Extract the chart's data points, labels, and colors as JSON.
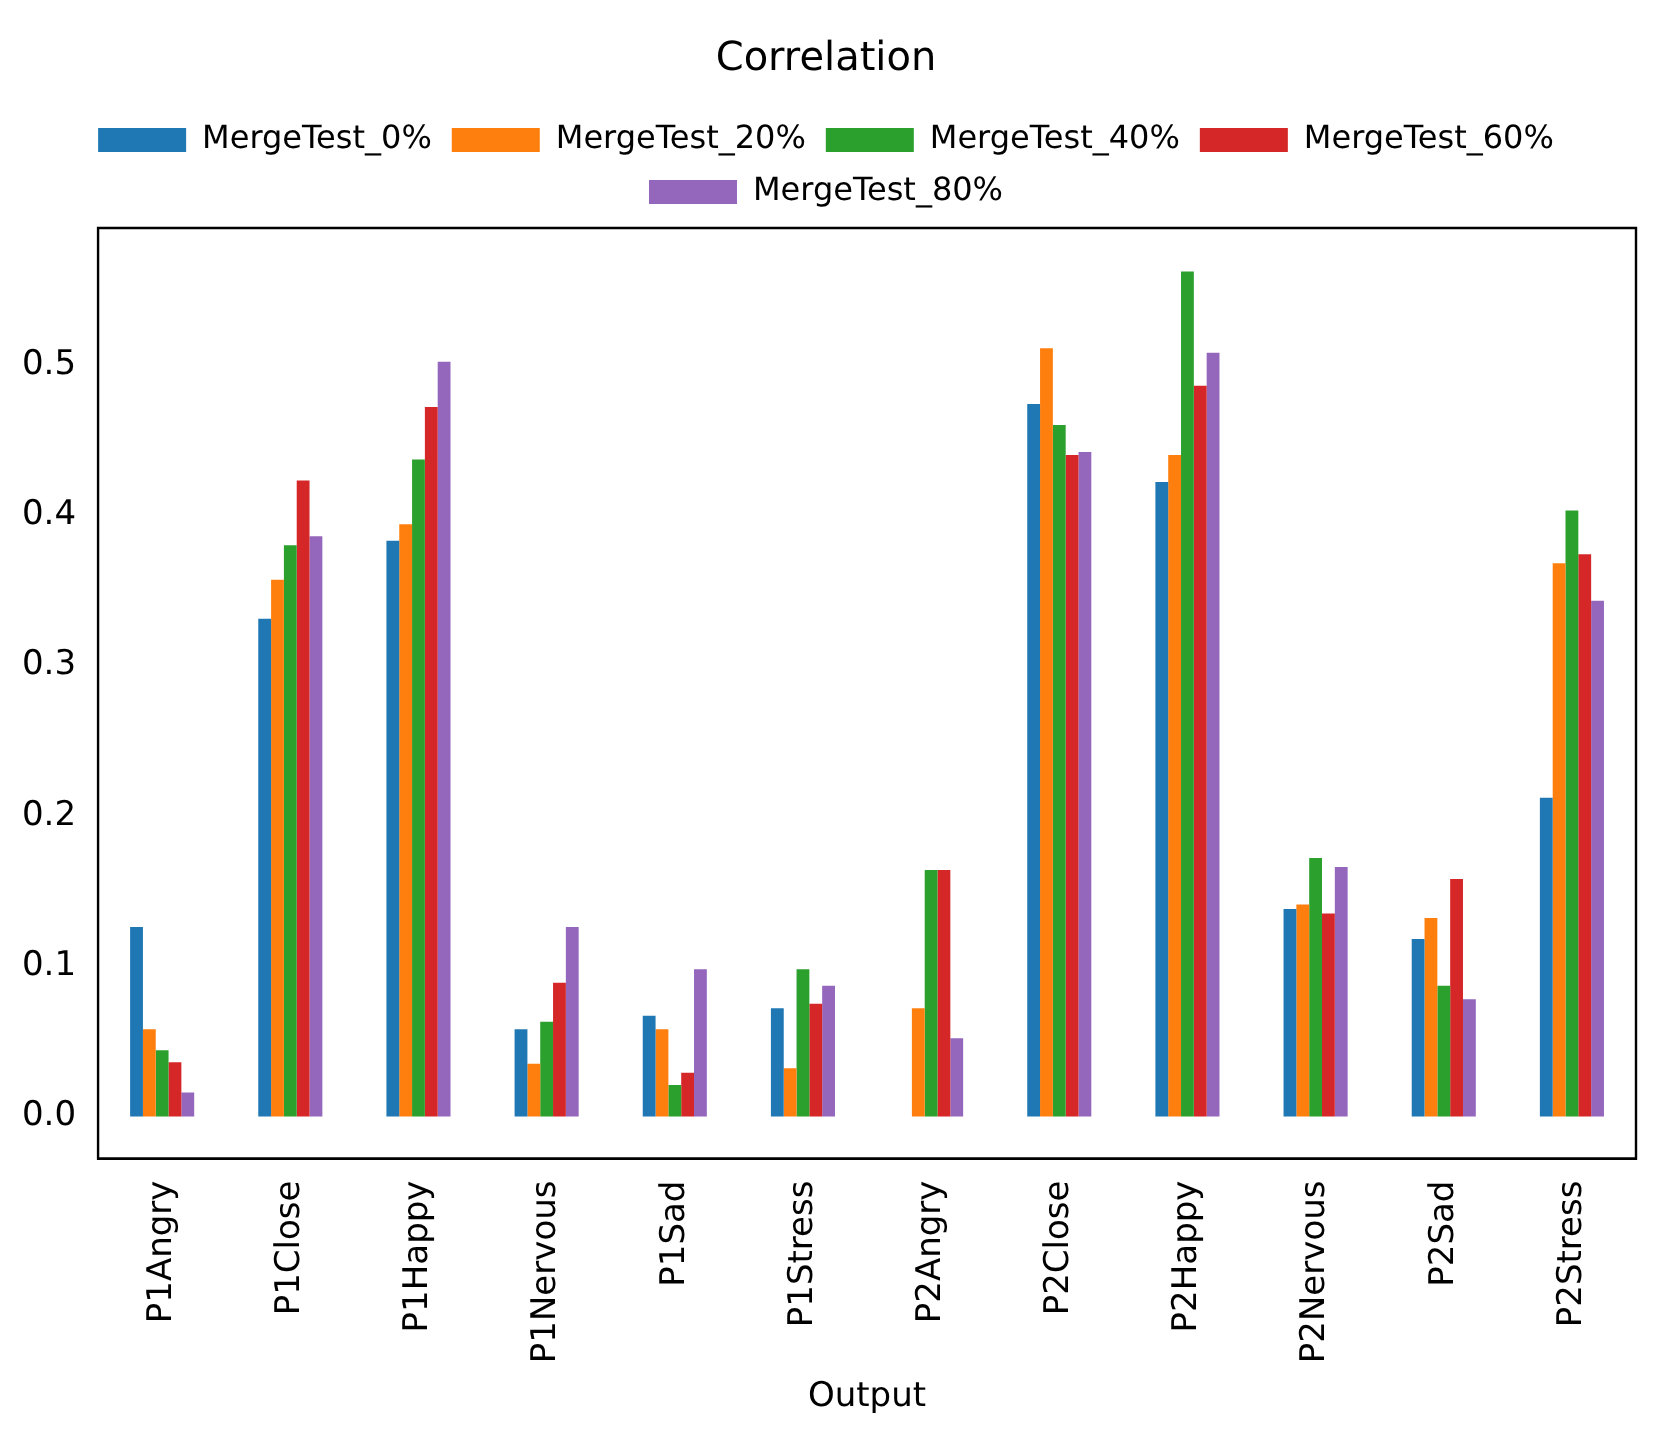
{
  "chart_data": {
    "type": "bar",
    "title": "Correlation",
    "xlabel": "Output",
    "categories": [
      "P1Angry",
      "P1Close",
      "P1Happy",
      "P1Nervous",
      "P1Sad",
      "P1Stress",
      "P2Angry",
      "P2Close",
      "P2Happy",
      "P2Nervous",
      "P2Sad",
      "P2Stress"
    ],
    "series": [
      {
        "name": "MergeTest_0%",
        "color": "#1f77b4",
        "values": [
          0.126,
          0.331,
          0.383,
          0.058,
          0.067,
          0.072,
          0,
          0.474,
          0.422,
          0.138,
          0.118,
          0.212
        ]
      },
      {
        "name": "MergeTest_20%",
        "color": "#ff7f0e",
        "values": [
          0.058,
          0.357,
          0.394,
          0.035,
          0.058,
          0.032,
          0.072,
          0.511,
          0.44,
          0.141,
          0.132,
          0.368
        ]
      },
      {
        "name": "MergeTest_40%",
        "color": "#2ca02c",
        "values": [
          0.044,
          0.38,
          0.437,
          0.063,
          0.021,
          0.098,
          0.164,
          0.46,
          0.562,
          0.172,
          0.087,
          0.403
        ]
      },
      {
        "name": "MergeTest_60%",
        "color": "#d62728",
        "values": [
          0.036,
          0.423,
          0.472,
          0.089,
          0.029,
          0.075,
          0.164,
          0.44,
          0.486,
          0.135,
          0.158,
          0.374
        ]
      },
      {
        "name": "MergeTest_80%",
        "color": "#9467bd",
        "values": [
          0.016,
          0.386,
          0.502,
          0.126,
          0.098,
          0.087,
          0.052,
          0.442,
          0.508,
          0.166,
          0.078,
          0.343
        ]
      }
    ],
    "ylim": [
      -0.028,
      0.591
    ],
    "yticks": [
      {
        "value": 0,
        "label": "0.0"
      },
      {
        "value": 0.1,
        "label": "0.1"
      },
      {
        "value": 0.2,
        "label": "0.2"
      },
      {
        "value": 0.3,
        "label": "0.3"
      },
      {
        "value": 0.4,
        "label": "0.4"
      },
      {
        "value": 0.5,
        "label": "0.5"
      }
    ],
    "grid": false,
    "legend": "top"
  }
}
